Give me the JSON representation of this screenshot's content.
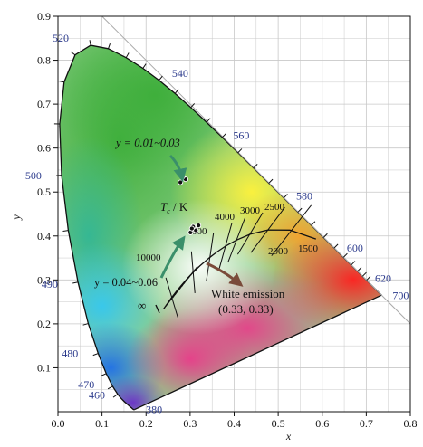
{
  "chart_data": {
    "type": "scatter",
    "title": "",
    "xlabel": "x",
    "ylabel": "y",
    "xlim": [
      0.0,
      0.8
    ],
    "ylim": [
      0.0,
      0.9
    ],
    "x_ticks": [
      "0.0",
      "0.1",
      "0.2",
      "0.3",
      "0.4",
      "0.5",
      "0.6",
      "0.7",
      "0.8"
    ],
    "y_ticks": [
      "0.1",
      "0.2",
      "0.3",
      "0.4",
      "0.5",
      "0.6",
      "0.7",
      "0.8",
      "0.9"
    ],
    "grid": true,
    "background": "CIE 1931 chromaticity diagram",
    "spectral_locus_labels": [
      {
        "nm": "380",
        "x": 0.175,
        "y": 0.005
      },
      {
        "nm": "460",
        "x": 0.144,
        "y": 0.03
      },
      {
        "nm": "470",
        "x": 0.124,
        "y": 0.058
      },
      {
        "nm": "480",
        "x": 0.091,
        "y": 0.133
      },
      {
        "nm": "490",
        "x": 0.045,
        "y": 0.295
      },
      {
        "nm": "500",
        "x": 0.008,
        "y": 0.538
      },
      {
        "nm": "520",
        "x": 0.074,
        "y": 0.834
      },
      {
        "nm": "540",
        "x": 0.23,
        "y": 0.754
      },
      {
        "nm": "560",
        "x": 0.373,
        "y": 0.625
      },
      {
        "nm": "580",
        "x": 0.512,
        "y": 0.487
      },
      {
        "nm": "600",
        "x": 0.627,
        "y": 0.373
      },
      {
        "nm": "620",
        "x": 0.691,
        "y": 0.308
      },
      {
        "nm": "700",
        "x": 0.735,
        "y": 0.265
      }
    ],
    "planckian_labels": [
      "1500",
      "2000",
      "2500",
      "3000",
      "4000",
      "10000",
      "∞"
    ],
    "planckian_label_1200_partial": "000",
    "temperature_axis_label": "T",
    "temperature_axis_subscript": "c",
    "temperature_axis_unit": " / K",
    "series": [
      {
        "label_text": "y = 0.01~0.03",
        "points": [
          {
            "x": 0.278,
            "y": 0.522
          },
          {
            "x": 0.29,
            "y": 0.529
          },
          {
            "x": 0.283,
            "y": 0.535
          }
        ]
      },
      {
        "label_text": "y = 0.04~0.06",
        "points": [
          {
            "x": 0.301,
            "y": 0.408
          },
          {
            "x": 0.313,
            "y": 0.413
          },
          {
            "x": 0.307,
            "y": 0.421
          },
          {
            "x": 0.319,
            "y": 0.424
          },
          {
            "x": 0.304,
            "y": 0.417
          }
        ]
      }
    ],
    "annotations": [
      {
        "text": "White emission",
        "sub": "(0.33, 0.33)",
        "point": {
          "x": 0.33,
          "y": 0.33
        }
      }
    ],
    "colors": {
      "arrow": "#3a8f6a",
      "axis": "#111111",
      "grid": "#c8c8c8",
      "wavelength": "#2b3a8c"
    }
  }
}
